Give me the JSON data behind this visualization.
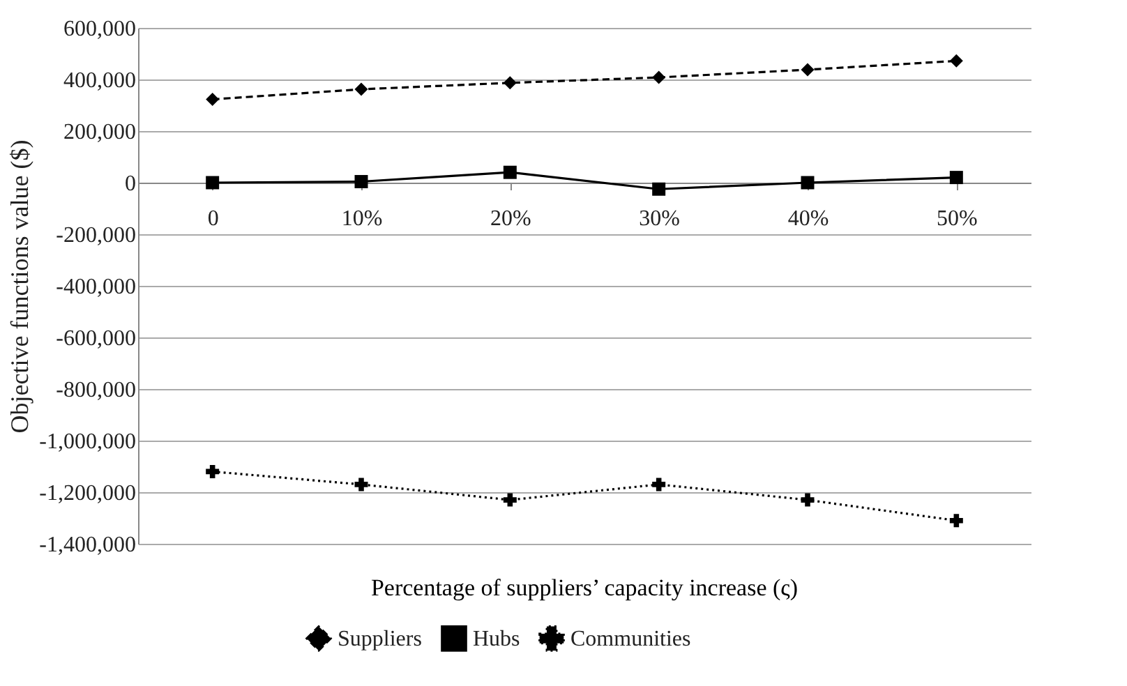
{
  "chart_data": {
    "type": "line",
    "xlabel": "Percentage of suppliers’ capacity increase (ς)",
    "ylabel": "Objective functions value ($)",
    "categories": [
      "0",
      "10%",
      "20%",
      "30%",
      "40%",
      "50%"
    ],
    "series": [
      {
        "name": "Suppliers",
        "color": "#000000",
        "values": [
          323000,
          362000,
          387000,
          408000,
          438000,
          472000
        ],
        "marker": "diamond",
        "line_style": "dashed"
      },
      {
        "name": "Hubs",
        "color": "#000000",
        "values": [
          0,
          4000,
          40000,
          -25000,
          0,
          20000
        ],
        "marker": "square",
        "line_style": "solid"
      },
      {
        "name": "Communities",
        "color": "#000000",
        "values": [
          -1120000,
          -1170000,
          -1230000,
          -1170000,
          -1230000,
          -1310000
        ],
        "marker": "cross",
        "line_style": "dotted"
      }
    ],
    "ylim": [
      -1400000,
      600000
    ],
    "yticks": [
      {
        "value": -1400000,
        "label": "-1,400,000"
      },
      {
        "value": -1200000,
        "label": "-1,200,000"
      },
      {
        "value": -1000000,
        "label": "-1,000,000"
      },
      {
        "value": -800000,
        "label": "-800,000"
      },
      {
        "value": -600000,
        "label": "-600,000"
      },
      {
        "value": -400000,
        "label": "-400,000"
      },
      {
        "value": -200000,
        "label": "-200,000"
      },
      {
        "value": 0,
        "label": "0"
      },
      {
        "value": 200000,
        "label": "200,000"
      },
      {
        "value": 400000,
        "label": "400,000"
      },
      {
        "value": 600000,
        "label": "600,000"
      }
    ],
    "grid": "y",
    "legend": "bottom"
  }
}
